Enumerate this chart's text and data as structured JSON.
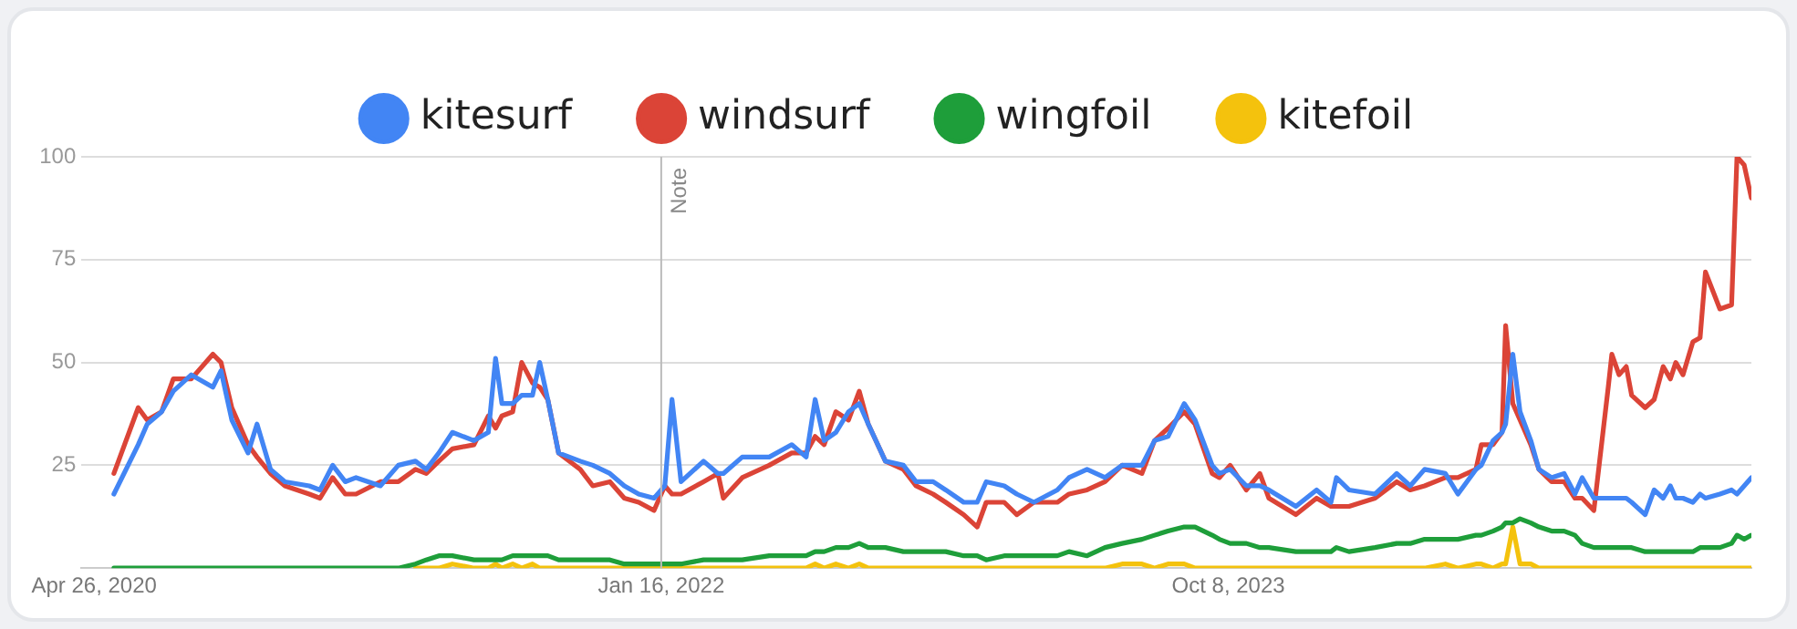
{
  "chart_data": {
    "type": "line",
    "x": [
      "2020-05-18",
      "2020-06-14",
      "2020-06-24",
      "2020-07-10",
      "2020-07-23",
      "2020-08-12",
      "2020-09-05",
      "2020-09-14",
      "2020-09-26",
      "2020-10-14",
      "2020-10-24",
      "2020-11-08",
      "2020-11-24",
      "2020-12-21",
      "2021-01-02",
      "2021-01-16",
      "2021-01-30",
      "2021-02-11",
      "2021-03-10",
      "2021-03-30",
      "2021-04-18",
      "2021-04-30",
      "2021-05-14",
      "2021-05-29",
      "2021-06-22",
      "2021-07-08",
      "2021-07-16",
      "2021-07-23",
      "2021-08-04",
      "2021-08-14",
      "2021-08-26",
      "2021-09-03",
      "2021-09-12",
      "2021-09-24",
      "2021-10-18",
      "2021-11-01",
      "2021-11-20",
      "2021-12-06",
      "2021-12-22",
      "2022-01-08",
      "2022-01-20",
      "2022-01-28",
      "2022-02-07",
      "2022-03-04",
      "2022-03-20",
      "2022-03-26",
      "2022-04-16",
      "2022-05-16",
      "2022-06-10",
      "2022-06-26",
      "2022-07-06",
      "2022-07-16",
      "2022-07-29",
      "2022-08-12",
      "2022-08-24",
      "2022-09-03",
      "2022-09-22",
      "2022-10-12",
      "2022-10-26",
      "2022-11-14",
      "2022-11-28",
      "2022-12-18",
      "2023-01-02",
      "2023-01-12",
      "2023-02-01",
      "2023-02-15",
      "2023-03-06",
      "2023-04-01",
      "2023-04-14",
      "2023-05-04",
      "2023-05-24",
      "2023-06-12",
      "2023-07-04",
      "2023-07-18",
      "2023-08-02",
      "2023-08-20",
      "2023-09-01",
      "2023-09-20",
      "2023-09-28",
      "2023-10-10",
      "2023-10-28",
      "2023-11-12",
      "2023-11-22",
      "2023-12-22",
      "2024-01-14",
      "2024-01-30",
      "2024-02-05",
      "2024-02-19",
      "2024-03-19",
      "2024-04-12",
      "2024-04-27",
      "2024-05-13",
      "2024-06-05",
      "2024-06-19",
      "2024-07-09",
      "2024-07-15",
      "2024-07-28",
      "2024-08-07",
      "2024-08-11",
      "2024-08-19",
      "2024-08-27",
      "2024-09-08",
      "2024-09-17",
      "2024-10-01",
      "2024-10-15",
      "2024-10-27",
      "2024-11-04",
      "2024-11-17",
      "2024-12-03",
      "2024-12-07",
      "2024-12-15",
      "2024-12-23",
      "2024-12-29",
      "2025-01-13",
      "2025-01-23",
      "2025-02-02",
      "2025-02-10",
      "2025-02-16",
      "2025-02-24",
      "2025-03-07",
      "2025-03-15",
      "2025-03-21",
      "2025-04-06",
      "2025-04-19",
      "2025-04-25",
      "2025-05-03",
      "2025-05-11"
    ],
    "series": [
      {
        "name": "kitesurf",
        "color": "#4285f4",
        "values": [
          18,
          30,
          35,
          38,
          43,
          47,
          44,
          48,
          36,
          28,
          35,
          24,
          21,
          20,
          19,
          25,
          21,
          22,
          20,
          25,
          26,
          24,
          28,
          33,
          31,
          33,
          51,
          40,
          40,
          42,
          42,
          50,
          41,
          28,
          26,
          25,
          23,
          20,
          18,
          17,
          20,
          41,
          21,
          26,
          23,
          23,
          27,
          27,
          30,
          27,
          41,
          31,
          33,
          38,
          40,
          35,
          26,
          25,
          21,
          21,
          19,
          16,
          16,
          21,
          20,
          18,
          16,
          19,
          22,
          24,
          22,
          25,
          25,
          31,
          32,
          40,
          36,
          25,
          23,
          24,
          20,
          20,
          19,
          15,
          19,
          16,
          22,
          19,
          18,
          23,
          20,
          24,
          23,
          18,
          24,
          25,
          31,
          33,
          35,
          52,
          38,
          31,
          24,
          22,
          23,
          18,
          22,
          17,
          17,
          17,
          17,
          17,
          16,
          13,
          19,
          17,
          20,
          17,
          17,
          16,
          18,
          17,
          18,
          19,
          18,
          20,
          22
        ]
      },
      {
        "name": "windsurf",
        "color": "#db4437",
        "values": [
          23,
          39,
          36,
          38,
          46,
          46,
          52,
          50,
          39,
          30,
          27,
          23,
          20,
          18,
          17,
          22,
          18,
          18,
          21,
          21,
          24,
          23,
          26,
          29,
          30,
          37,
          34,
          37,
          38,
          50,
          45,
          44,
          41,
          28,
          24,
          20,
          21,
          17,
          16,
          14,
          20,
          18,
          18,
          21,
          23,
          17,
          22,
          25,
          28,
          28,
          32,
          30,
          38,
          36,
          43,
          35,
          26,
          24,
          20,
          18,
          16,
          13,
          10,
          16,
          16,
          13,
          16,
          16,
          18,
          19,
          21,
          25,
          23,
          31,
          34,
          38,
          35,
          23,
          22,
          25,
          19,
          23,
          17,
          13,
          17,
          15,
          15,
          15,
          17,
          21,
          19,
          20,
          22,
          22,
          24,
          30,
          30,
          33,
          59,
          40,
          36,
          30,
          24,
          21,
          21,
          17,
          17,
          14,
          44,
          52,
          47,
          49,
          42,
          39,
          41,
          49,
          46,
          50,
          47,
          55,
          56,
          72,
          63,
          64,
          100,
          98,
          90
        ]
      },
      {
        "name": "wingfoil",
        "color": "#1e9e3a",
        "values": [
          0,
          0,
          0,
          0,
          0,
          0,
          0,
          0,
          0,
          0,
          0,
          0,
          0,
          0,
          0,
          0,
          0,
          0,
          0,
          0,
          1,
          2,
          3,
          3,
          2,
          2,
          2,
          2,
          3,
          3,
          3,
          3,
          3,
          2,
          2,
          2,
          2,
          1,
          1,
          1,
          1,
          1,
          1,
          2,
          2,
          2,
          2,
          3,
          3,
          3,
          4,
          4,
          5,
          5,
          6,
          5,
          5,
          4,
          4,
          4,
          4,
          3,
          3,
          2,
          3,
          3,
          3,
          3,
          4,
          3,
          5,
          6,
          7,
          8,
          9,
          10,
          10,
          8,
          7,
          6,
          6,
          5,
          5,
          4,
          4,
          4,
          5,
          4,
          5,
          6,
          6,
          7,
          7,
          7,
          8,
          8,
          9,
          10,
          11,
          11,
          12,
          11,
          10,
          9,
          9,
          8,
          6,
          5,
          5,
          5,
          5,
          5,
          5,
          4,
          4,
          4,
          4,
          4,
          4,
          4,
          5,
          5,
          5,
          6,
          8,
          7,
          8
        ]
      },
      {
        "name": "kitefoil",
        "color": "#f4c20d",
        "values": [
          null,
          null,
          null,
          null,
          null,
          null,
          null,
          null,
          null,
          null,
          null,
          null,
          null,
          null,
          null,
          null,
          null,
          null,
          null,
          null,
          0,
          0,
          0,
          1,
          0,
          0,
          1,
          0,
          1,
          0,
          1,
          0,
          0,
          0,
          0,
          0,
          0,
          0,
          0,
          0,
          0,
          0,
          0,
          0,
          0,
          0,
          0,
          0,
          0,
          0,
          1,
          0,
          1,
          0,
          1,
          0,
          0,
          0,
          0,
          0,
          0,
          0,
          0,
          0,
          0,
          0,
          0,
          0,
          0,
          0,
          0,
          1,
          1,
          0,
          1,
          1,
          0,
          0,
          0,
          0,
          0,
          0,
          0,
          0,
          0,
          0,
          0,
          0,
          0,
          0,
          0,
          0,
          1,
          0,
          1,
          1,
          0,
          1,
          1,
          10,
          1,
          1,
          0,
          0,
          0,
          0,
          0,
          0,
          0,
          0,
          0,
          0,
          0,
          0,
          0,
          0,
          0,
          0,
          0,
          0,
          0,
          0,
          0,
          0,
          0,
          0,
          0
        ]
      }
    ],
    "xlim": [
      "2020-04-12",
      "2025-05-11"
    ],
    "xticks": [
      {
        "value": "2020-04-26",
        "label": "Apr 26, 2020"
      },
      {
        "value": "2022-01-16",
        "label": "Jan 16, 2022"
      },
      {
        "value": "2023-10-08",
        "label": "Oct 8, 2023"
      }
    ],
    "ylim": [
      0,
      100
    ],
    "yticks": [
      {
        "value": 0,
        "label": null
      },
      25,
      50,
      75,
      100
    ],
    "grid": "y",
    "legend": "top",
    "marker": "none",
    "line_style": "solid",
    "ref_lines": [
      {
        "axis": "x",
        "value": "2022-01-16",
        "label": "Note",
        "color": "#bbbbbb"
      }
    ]
  }
}
